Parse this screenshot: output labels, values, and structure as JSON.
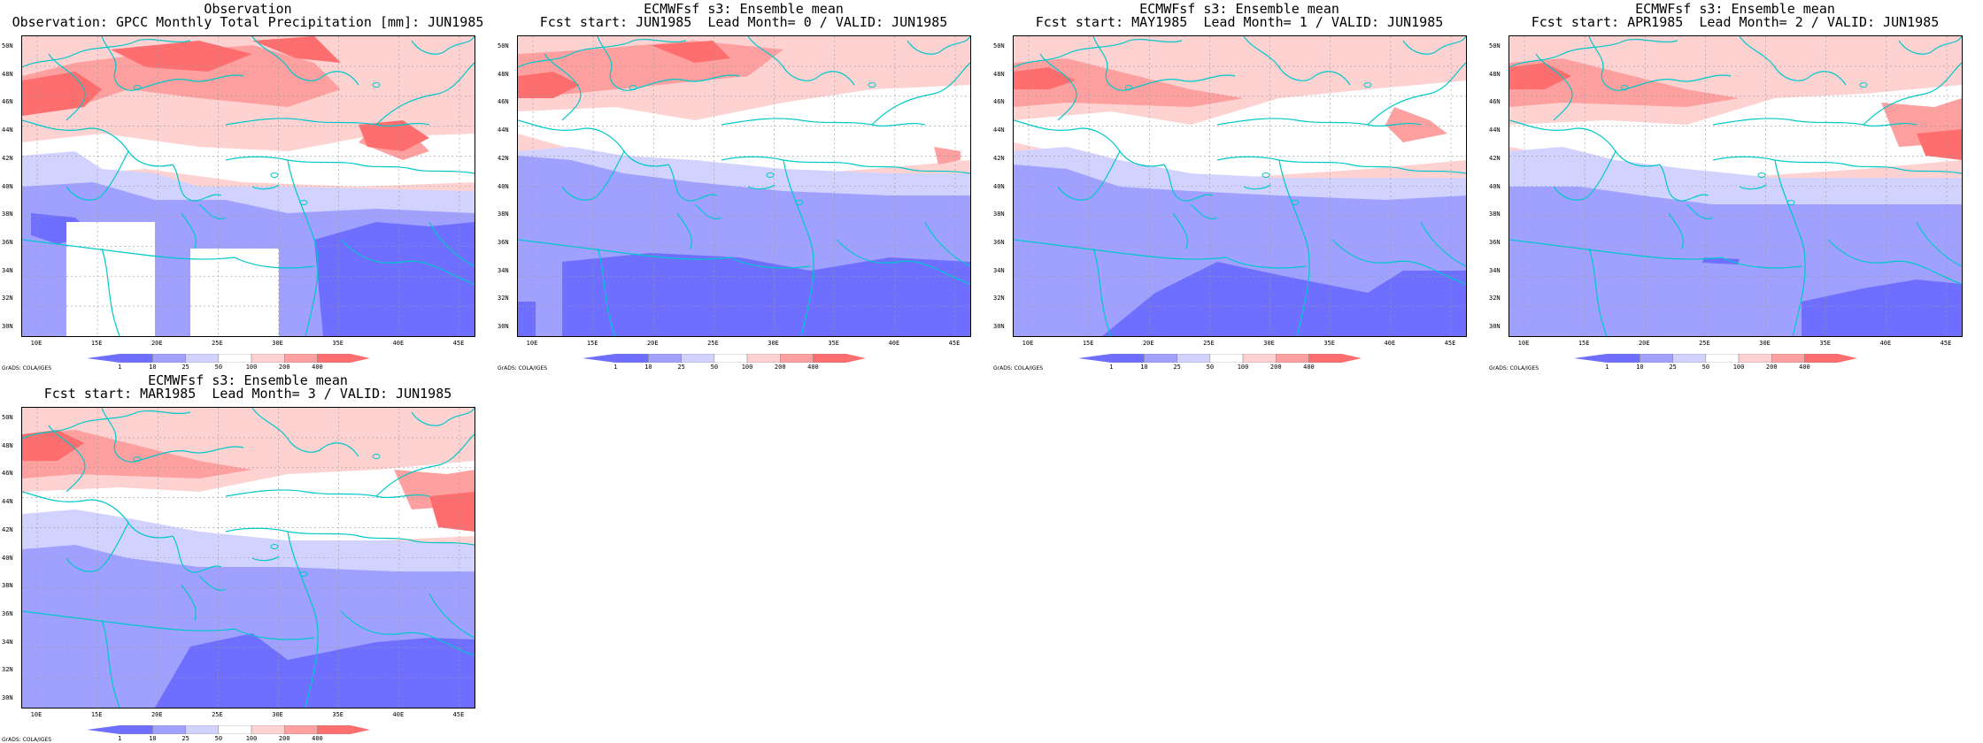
{
  "panels": [
    {
      "title1": "Observation",
      "title2": "Observation: GPCC Monthly Total Precipitation [mm]: JUN1985",
      "variant": "obs",
      "mask": true
    },
    {
      "title1": "ECMWFsf s3: Ensemble mean",
      "title2": "Fcst start: JUN1985  Lead Month= 0 / VALID: JUN1985",
      "variant": "f0",
      "mask": false
    },
    {
      "title1": "ECMWFsf s3: Ensemble mean",
      "title2": "Fcst start: MAY1985  Lead Month= 1 / VALID: JUN1985",
      "variant": "f1",
      "mask": false
    },
    {
      "title1": "ECMWFsf s3: Ensemble mean",
      "title2": "Fcst start: APR1985  Lead Month= 2 / VALID: JUN1985",
      "variant": "f2",
      "mask": false
    },
    {
      "title1": "ECMWFsf s3: Ensemble mean",
      "title2": "Fcst start: MAR1985  Lead Month= 3 / VALID: JUN1985",
      "variant": "f3",
      "mask": false
    }
  ],
  "lat_ticks": [
    "50N",
    "48N",
    "46N",
    "44N",
    "42N",
    "40N",
    "38N",
    "36N",
    "34N",
    "32N",
    "30N"
  ],
  "lon_ticks": [
    "10E",
    "15E",
    "20E",
    "25E",
    "30E",
    "35E",
    "40E",
    "45E"
  ],
  "colorbar_labels": [
    "1",
    "10",
    "25",
    "50",
    "100",
    "200",
    "400"
  ],
  "credit": "GrADS: COLA/IGES",
  "colors": {
    "coast": "#00c8c8",
    "blue_dark": "#6e6eff",
    "blue_mid": "#a0a0ff",
    "blue_light": "#d2d2ff",
    "white": "#ffffff",
    "pink_light": "#ffd2d2",
    "pink_mid": "#ffa0a0",
    "red": "#ff6e6e"
  }
}
